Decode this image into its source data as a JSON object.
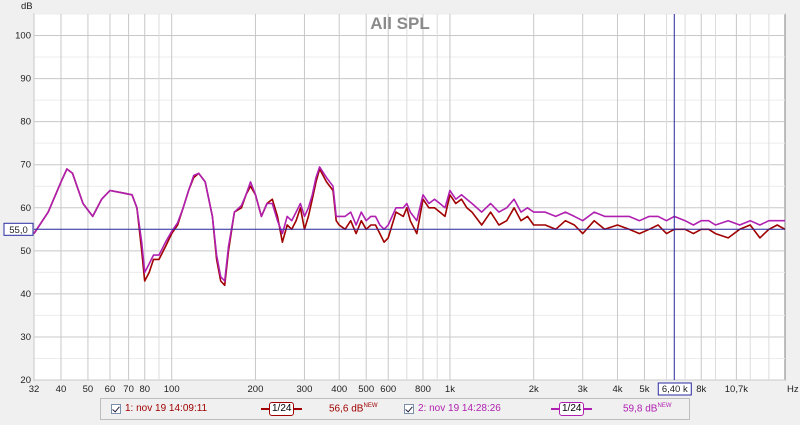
{
  "chart_data": {
    "type": "line",
    "title": "All SPL",
    "y_unit": "dB",
    "x_unit": "Hz",
    "x_scale": "log",
    "xlim": [
      32,
      16000
    ],
    "ylim": [
      20,
      105
    ],
    "y_ticks": [
      20,
      30,
      40,
      50,
      60,
      70,
      80,
      90,
      100
    ],
    "x_ticks": [
      {
        "v": 32,
        "label": "32"
      },
      {
        "v": 40,
        "label": "40"
      },
      {
        "v": 50,
        "label": "50"
      },
      {
        "v": 60,
        "label": "60"
      },
      {
        "v": 70,
        "label": "70"
      },
      {
        "v": 80,
        "label": "80"
      },
      {
        "v": 100,
        "label": "100"
      },
      {
        "v": 200,
        "label": "200"
      },
      {
        "v": 300,
        "label": "300"
      },
      {
        "v": 400,
        "label": "400"
      },
      {
        "v": 500,
        "label": "500"
      },
      {
        "v": 600,
        "label": "600"
      },
      {
        "v": 800,
        "label": "800"
      },
      {
        "v": 1000,
        "label": "1k"
      },
      {
        "v": 2000,
        "label": "2k"
      },
      {
        "v": 3000,
        "label": "3k"
      },
      {
        "v": 4000,
        "label": "4k"
      },
      {
        "v": 5000,
        "label": "5k"
      },
      {
        "v": 8000,
        "label": "8k"
      },
      {
        "v": 10700,
        "label": "10,7k"
      }
    ],
    "minor_x": [
      90,
      700,
      900,
      6000,
      7000,
      9000,
      12000,
      14000
    ],
    "cursor": {
      "x": 6400,
      "x_label": "6,40 k",
      "y": 55.0,
      "y_label": "55,0"
    },
    "grid": true,
    "series": [
      {
        "name": "1: nov 19 14:09:11",
        "color": "#a00000",
        "points": [
          [
            32,
            54
          ],
          [
            36,
            59
          ],
          [
            40,
            66
          ],
          [
            42,
            69
          ],
          [
            44,
            68
          ],
          [
            48,
            61
          ],
          [
            52,
            58
          ],
          [
            56,
            62
          ],
          [
            60,
            64
          ],
          [
            66,
            63.5
          ],
          [
            72,
            63
          ],
          [
            75,
            60
          ],
          [
            78,
            50
          ],
          [
            80,
            43
          ],
          [
            83,
            45
          ],
          [
            86,
            48
          ],
          [
            90,
            48
          ],
          [
            95,
            51
          ],
          [
            100,
            54
          ],
          [
            105,
            56
          ],
          [
            110,
            60
          ],
          [
            115,
            64
          ],
          [
            120,
            67
          ],
          [
            125,
            68
          ],
          [
            132,
            66
          ],
          [
            140,
            58
          ],
          [
            145,
            48
          ],
          [
            150,
            43
          ],
          [
            155,
            42
          ],
          [
            160,
            50
          ],
          [
            168,
            59
          ],
          [
            178,
            60
          ],
          [
            185,
            63
          ],
          [
            192,
            65
          ],
          [
            200,
            63
          ],
          [
            210,
            58
          ],
          [
            220,
            61
          ],
          [
            230,
            62
          ],
          [
            240,
            58
          ],
          [
            250,
            52
          ],
          [
            260,
            56
          ],
          [
            270,
            55
          ],
          [
            280,
            57
          ],
          [
            290,
            60
          ],
          [
            300,
            55
          ],
          [
            310,
            58
          ],
          [
            320,
            62
          ],
          [
            330,
            66
          ],
          [
            340,
            69
          ],
          [
            360,
            66
          ],
          [
            380,
            64
          ],
          [
            390,
            57
          ],
          [
            400,
            56
          ],
          [
            420,
            55
          ],
          [
            440,
            57
          ],
          [
            460,
            54
          ],
          [
            480,
            57
          ],
          [
            500,
            55
          ],
          [
            520,
            56
          ],
          [
            540,
            56
          ],
          [
            560,
            54
          ],
          [
            580,
            52
          ],
          [
            600,
            53
          ],
          [
            640,
            59
          ],
          [
            680,
            58
          ],
          [
            700,
            60
          ],
          [
            720,
            57
          ],
          [
            760,
            54
          ],
          [
            800,
            62
          ],
          [
            840,
            60
          ],
          [
            880,
            60
          ],
          [
            920,
            59
          ],
          [
            960,
            58
          ],
          [
            1000,
            63
          ],
          [
            1050,
            61
          ],
          [
            1100,
            62
          ],
          [
            1150,
            60
          ],
          [
            1200,
            59
          ],
          [
            1300,
            56
          ],
          [
            1400,
            59
          ],
          [
            1500,
            56
          ],
          [
            1600,
            57
          ],
          [
            1700,
            60
          ],
          [
            1800,
            57
          ],
          [
            1900,
            58
          ],
          [
            2000,
            56
          ],
          [
            2200,
            56
          ],
          [
            2400,
            55
          ],
          [
            2600,
            57
          ],
          [
            2800,
            56
          ],
          [
            3000,
            54
          ],
          [
            3300,
            57
          ],
          [
            3600,
            55
          ],
          [
            4000,
            56
          ],
          [
            4400,
            55
          ],
          [
            4800,
            54
          ],
          [
            5200,
            55
          ],
          [
            5600,
            56
          ],
          [
            6000,
            54
          ],
          [
            6400,
            55
          ],
          [
            7000,
            55
          ],
          [
            7500,
            54
          ],
          [
            8000,
            55
          ],
          [
            8500,
            55
          ],
          [
            9000,
            54
          ],
          [
            10000,
            53
          ],
          [
            11000,
            55
          ],
          [
            12000,
            56
          ],
          [
            13000,
            53
          ],
          [
            14000,
            55
          ],
          [
            15000,
            56
          ],
          [
            16000,
            55
          ]
        ]
      },
      {
        "name": "2: nov 19 14:28:26",
        "color": "#b020b0",
        "points": [
          [
            32,
            54
          ],
          [
            36,
            59
          ],
          [
            40,
            66
          ],
          [
            42,
            69
          ],
          [
            44,
            68
          ],
          [
            48,
            61
          ],
          [
            52,
            58
          ],
          [
            56,
            62
          ],
          [
            60,
            64
          ],
          [
            66,
            63.5
          ],
          [
            72,
            63
          ],
          [
            75,
            60
          ],
          [
            78,
            52
          ],
          [
            80,
            45
          ],
          [
            83,
            47
          ],
          [
            86,
            49
          ],
          [
            90,
            49
          ],
          [
            95,
            52
          ],
          [
            100,
            54.5
          ],
          [
            105,
            56.5
          ],
          [
            110,
            60
          ],
          [
            115,
            64
          ],
          [
            120,
            67.5
          ],
          [
            125,
            68
          ],
          [
            132,
            66
          ],
          [
            140,
            58
          ],
          [
            145,
            49
          ],
          [
            150,
            44
          ],
          [
            155,
            43
          ],
          [
            160,
            51
          ],
          [
            168,
            59
          ],
          [
            178,
            60.5
          ],
          [
            185,
            63
          ],
          [
            192,
            66
          ],
          [
            200,
            63
          ],
          [
            210,
            58
          ],
          [
            220,
            61
          ],
          [
            230,
            61
          ],
          [
            240,
            57
          ],
          [
            250,
            54
          ],
          [
            260,
            58
          ],
          [
            270,
            57
          ],
          [
            280,
            59
          ],
          [
            290,
            61
          ],
          [
            300,
            58
          ],
          [
            310,
            60
          ],
          [
            320,
            63
          ],
          [
            330,
            67
          ],
          [
            340,
            69.5
          ],
          [
            360,
            67
          ],
          [
            380,
            65
          ],
          [
            390,
            58
          ],
          [
            400,
            58
          ],
          [
            420,
            58
          ],
          [
            440,
            59
          ],
          [
            460,
            56
          ],
          [
            480,
            59
          ],
          [
            500,
            57
          ],
          [
            520,
            58
          ],
          [
            540,
            58
          ],
          [
            560,
            56
          ],
          [
            580,
            55
          ],
          [
            600,
            56
          ],
          [
            640,
            60
          ],
          [
            680,
            60
          ],
          [
            700,
            61
          ],
          [
            720,
            59
          ],
          [
            760,
            57
          ],
          [
            800,
            63
          ],
          [
            840,
            61
          ],
          [
            880,
            62
          ],
          [
            920,
            61
          ],
          [
            960,
            60
          ],
          [
            1000,
            64
          ],
          [
            1050,
            62
          ],
          [
            1100,
            63
          ],
          [
            1150,
            62
          ],
          [
            1200,
            61
          ],
          [
            1300,
            59
          ],
          [
            1400,
            61
          ],
          [
            1500,
            59
          ],
          [
            1600,
            60
          ],
          [
            1700,
            62
          ],
          [
            1800,
            59
          ],
          [
            1900,
            60
          ],
          [
            2000,
            59
          ],
          [
            2200,
            59
          ],
          [
            2400,
            58
          ],
          [
            2600,
            59
          ],
          [
            2800,
            58
          ],
          [
            3000,
            57
          ],
          [
            3300,
            59
          ],
          [
            3600,
            58
          ],
          [
            4000,
            58
          ],
          [
            4400,
            58
          ],
          [
            4800,
            57
          ],
          [
            5200,
            58
          ],
          [
            5600,
            58
          ],
          [
            6000,
            57
          ],
          [
            6400,
            58
          ],
          [
            7000,
            57
          ],
          [
            7500,
            56
          ],
          [
            8000,
            57
          ],
          [
            8500,
            57
          ],
          [
            9000,
            56
          ],
          [
            10000,
            57
          ],
          [
            11000,
            56
          ],
          [
            12000,
            57
          ],
          [
            13000,
            56
          ],
          [
            14000,
            57
          ],
          [
            15000,
            57
          ],
          [
            16000,
            57
          ]
        ]
      }
    ]
  },
  "legend": [
    {
      "checked": true,
      "label": "1: nov 19 14:09:11",
      "smoothing": "1/24",
      "level": "56,6 dB",
      "tag": "NEW",
      "color": "#a00000"
    },
    {
      "checked": true,
      "label": "2: nov 19 14:28:26",
      "smoothing": "1/24",
      "level": "59,8 dB",
      "tag": "NEW",
      "color": "#b020b0"
    }
  ]
}
